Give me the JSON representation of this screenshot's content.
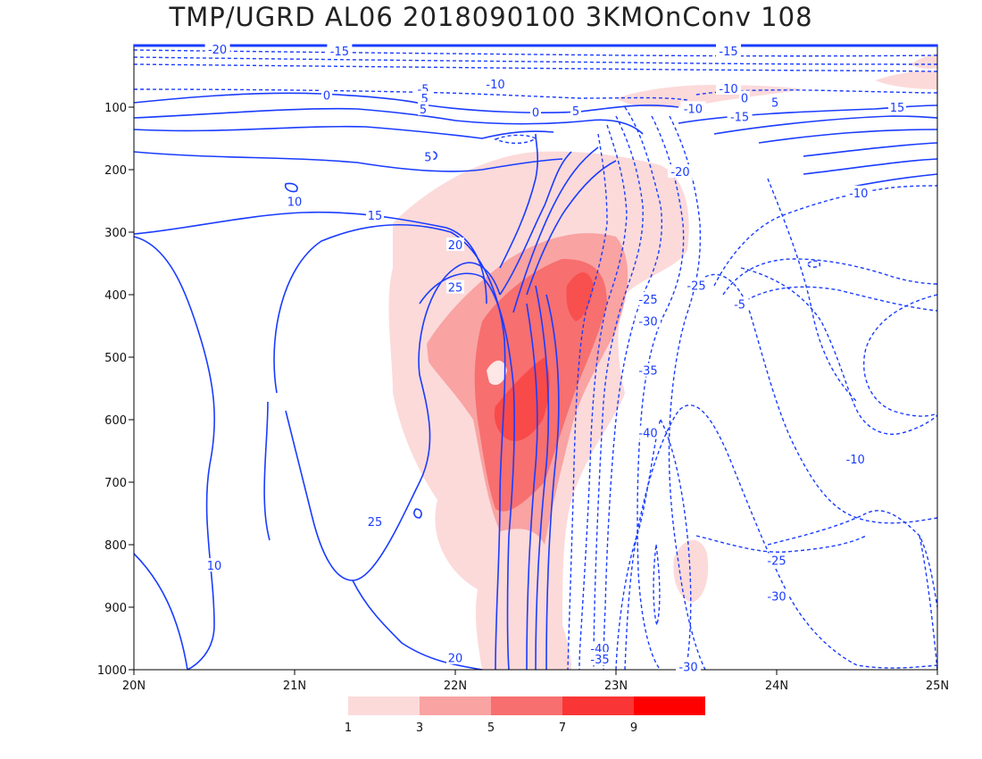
{
  "title": "TMP/UGRD AL06 2018090100 3KMOnConv 108",
  "chart_data": {
    "type": "contour",
    "title": "TMP/UGRD AL06 2018090100 3KMOnConv 108",
    "x_axis": {
      "ticks": [
        "20N",
        "21N",
        "22N",
        "23N",
        "24N",
        "25N"
      ],
      "range": [
        20,
        25
      ]
    },
    "y_axis": {
      "ticks": [
        "100",
        "200",
        "300",
        "400",
        "500",
        "600",
        "700",
        "800",
        "900",
        "1000"
      ],
      "range": [
        1000,
        0
      ],
      "inverted": true
    },
    "colorbar": {
      "labels": [
        "1",
        "3",
        "5",
        "7",
        "9"
      ],
      "colors": [
        "#fcdada",
        "#f9a3a3",
        "#f76f6f",
        "#fa3535",
        "#ff0000"
      ]
    },
    "contour_line_color": "#1a3cff",
    "contour_labels": [
      {
        "text": "-20",
        "x": 20.52,
        "y": 7
      },
      {
        "text": "-15",
        "x": 21.28,
        "y": 10
      },
      {
        "text": "-10",
        "x": 22.25,
        "y": 63
      },
      {
        "text": "-5",
        "x": 21.8,
        "y": 71
      },
      {
        "text": "0",
        "x": 21.2,
        "y": 81
      },
      {
        "text": "5",
        "x": 21.81,
        "y": 86
      },
      {
        "text": "5",
        "x": 21.8,
        "y": 103
      },
      {
        "text": "0",
        "x": 22.5,
        "y": 108
      },
      {
        "text": "5",
        "x": 22.75,
        "y": 106
      },
      {
        "text": "5",
        "x": 21.83,
        "y": 179
      },
      {
        "text": "10",
        "x": 21.0,
        "y": 251
      },
      {
        "text": "15",
        "x": 21.5,
        "y": 273
      },
      {
        "text": "20",
        "x": 22.0,
        "y": 320
      },
      {
        "text": "25",
        "x": 22.0,
        "y": 388
      },
      {
        "text": "25",
        "x": 21.5,
        "y": 763
      },
      {
        "text": "10",
        "x": 20.5,
        "y": 833
      },
      {
        "text": "20",
        "x": 22.0,
        "y": 981
      },
      {
        "text": "-10",
        "x": 23.7,
        "y": 70
      },
      {
        "text": "-15",
        "x": 23.7,
        "y": 10
      },
      {
        "text": "-10",
        "x": 23.48,
        "y": 102
      },
      {
        "text": "0",
        "x": 23.8,
        "y": 85
      },
      {
        "text": "5",
        "x": 23.99,
        "y": 92
      },
      {
        "text": "15",
        "x": 24.75,
        "y": 100
      },
      {
        "text": "-15",
        "x": 23.77,
        "y": 115
      },
      {
        "text": "-20",
        "x": 23.4,
        "y": 203
      },
      {
        "text": "-10",
        "x": 24.51,
        "y": 237
      },
      {
        "text": "-25",
        "x": 23.5,
        "y": 385
      },
      {
        "text": "-25",
        "x": 23.2,
        "y": 407
      },
      {
        "text": "-5",
        "x": 23.77,
        "y": 415
      },
      {
        "text": "-30",
        "x": 23.2,
        "y": 442
      },
      {
        "text": "-35",
        "x": 23.2,
        "y": 521
      },
      {
        "text": "-40",
        "x": 23.2,
        "y": 621
      },
      {
        "text": "-10",
        "x": 24.49,
        "y": 663
      },
      {
        "text": "-25",
        "x": 24.0,
        "y": 825
      },
      {
        "text": "-30",
        "x": 24.0,
        "y": 882
      },
      {
        "text": "-40",
        "x": 22.9,
        "y": 966
      },
      {
        "text": "-35",
        "x": 22.9,
        "y": 983
      },
      {
        "text": "-30",
        "x": 23.45,
        "y": 995
      }
    ]
  }
}
